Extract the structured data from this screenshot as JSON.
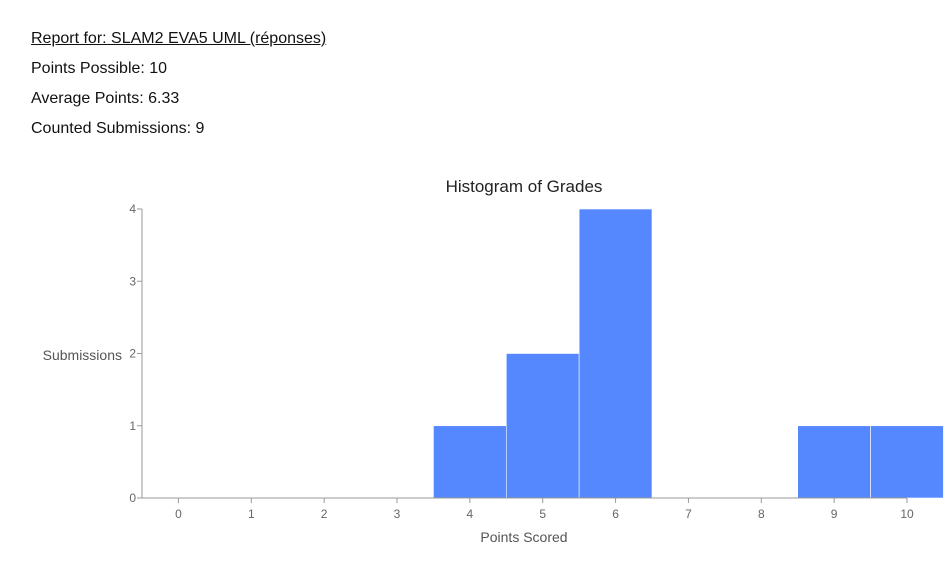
{
  "report": {
    "title": "Report for: SLAM2 EVA5 UML (réponses)",
    "points_possible": "Points Possible: 10",
    "average_points": "Average Points: 6.33",
    "counted_submissions": "Counted Submissions: 9"
  },
  "chart_data": {
    "type": "bar",
    "title": "Histogram of Grades",
    "xlabel": "Points Scored",
    "ylabel": "Submissions",
    "categories": [
      "0",
      "1",
      "2",
      "3",
      "4",
      "5",
      "6",
      "7",
      "8",
      "9",
      "10"
    ],
    "values": [
      0,
      0,
      0,
      0,
      1,
      2,
      4,
      0,
      0,
      1,
      1
    ],
    "yticks": [
      "0",
      "1",
      "2",
      "3",
      "4"
    ],
    "ylim": [
      0,
      4
    ],
    "grid": false,
    "bar_color": "#5588ff",
    "axis_color": "#999999"
  }
}
